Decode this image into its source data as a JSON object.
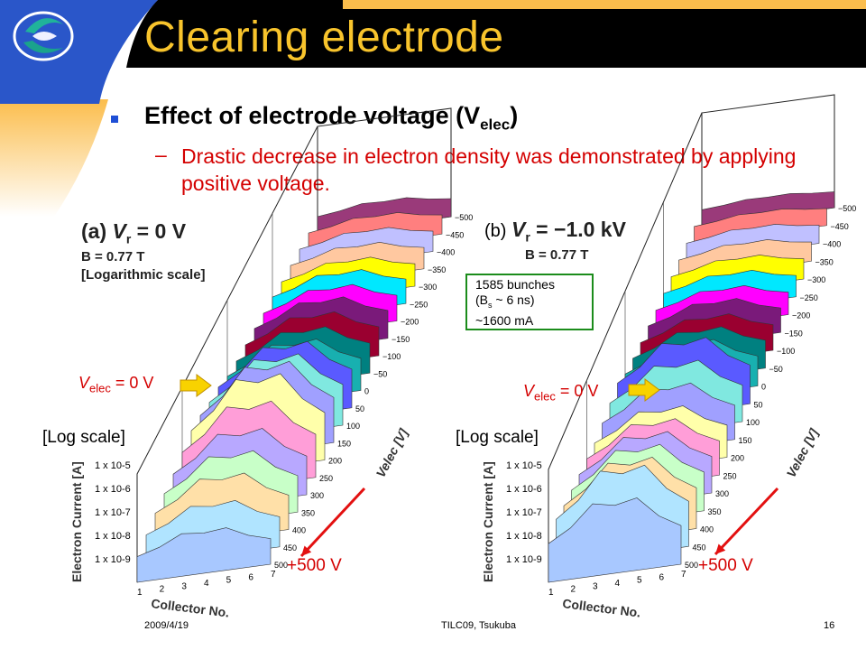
{
  "slide": {
    "title": "Clearing electrode",
    "bullet_prefix": "Effect of electrode voltage (V",
    "bullet_sub": "elec",
    "bullet_suffix": ")",
    "sub_dash": "–",
    "sub_text": "Drastic decrease in electron density was demonstrated by applying positive voltage.",
    "footer_date": "2009/4/19",
    "footer_center": "TILC09,  Tsukuba",
    "footer_page": "16"
  },
  "colors": {
    "title": "#f8c42c",
    "header_bg": "#000000",
    "accent_blue": "#2a56c9",
    "text_red": "#d40000",
    "annot_border": "#1b8c1b",
    "arrow_yellow": "#f8d200"
  },
  "panels": [
    {
      "label_a": "(a) ",
      "vr_text": "V",
      "vr_sub": "r",
      "vr_value": " = 0 V",
      "field": "B = 0.77 T",
      "scale_note": "[Logarithmic scale]",
      "velec_label_main": "V",
      "velec_label_sub": "elec",
      "velec_label_value": " = 0 V",
      "log_scale": "[Log scale]",
      "plus_label": "+500 V"
    },
    {
      "label_b": "(b) ",
      "vr_text": "V",
      "vr_sub": "r",
      "vr_value": " = −1.0 kV",
      "field": "B = 0.77 T",
      "velec_label_main": "V",
      "velec_label_sub": "elec",
      "velec_label_value": " = 0 V",
      "log_scale": "[Log scale]",
      "plus_label": "+500 V"
    }
  ],
  "annotation": {
    "line1": "1585 bunches",
    "line2_pre": "(B",
    "line2_sub": "s",
    "line2_post": " ~ 6 ns)",
    "line3": "~1600 mA"
  },
  "chart_data": [
    {
      "type": "area",
      "title": "(a) Vr = 0 V",
      "xlabel": "Collector No.",
      "ylabel": "Electron Current [A]",
      "zlabel": "Velec [V]",
      "x": [
        1,
        2,
        3,
        4,
        5,
        6,
        7
      ],
      "y_ticks": [
        "1 x 10-9",
        "1 x 10-8",
        "1 x 10-7",
        "1 x 10-6",
        "1 x 10-5"
      ],
      "z_ticks": [
        -500,
        -450,
        -400,
        -350,
        -300,
        -250,
        -200,
        -150,
        -100,
        -50,
        0,
        50,
        100,
        150,
        200,
        250,
        300,
        350,
        400,
        450,
        500
      ]
    },
    {
      "type": "area",
      "title": "(b) Vr = −1.0 kV",
      "xlabel": "Collector No.",
      "ylabel": "Electron Current [A]",
      "zlabel": "Velec [V]",
      "x": [
        1,
        2,
        3,
        4,
        5,
        6,
        7
      ],
      "y_ticks": [
        "1 x 10-9",
        "1 x 10-8",
        "1 x 10-7",
        "1 x 10-6",
        "1 x 10-5"
      ],
      "z_ticks": [
        -500,
        -450,
        -400,
        -350,
        -300,
        -250,
        -200,
        -150,
        -100,
        -50,
        0,
        50,
        100,
        150,
        200,
        250,
        300,
        350,
        400,
        450,
        500
      ]
    }
  ]
}
